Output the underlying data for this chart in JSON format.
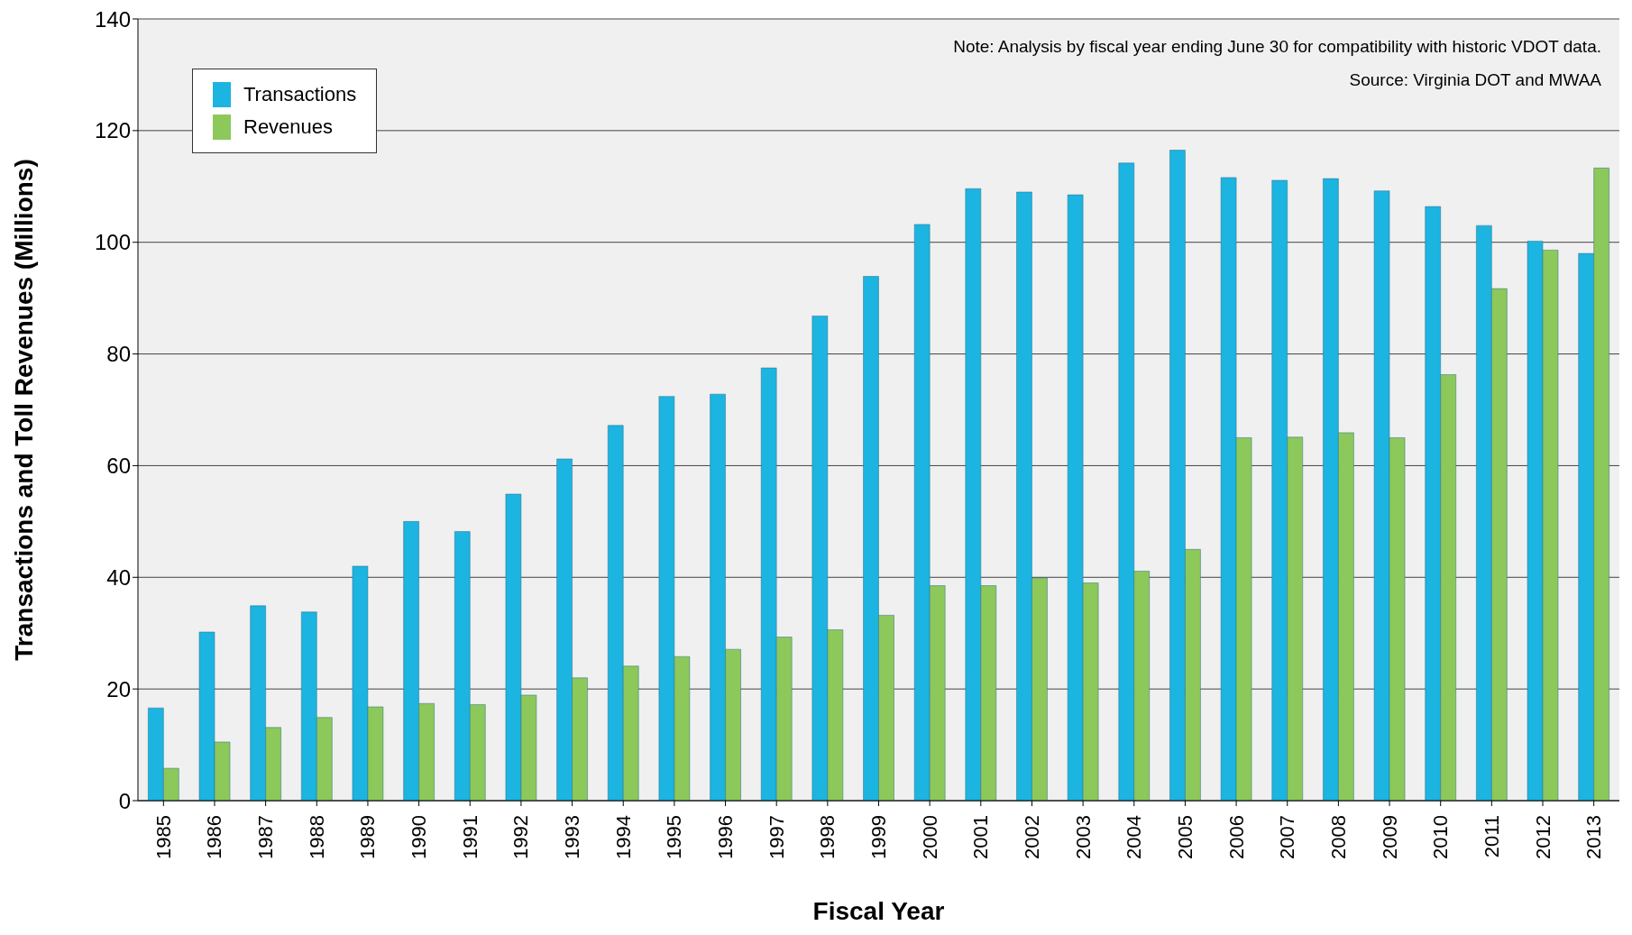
{
  "chart_data": {
    "type": "bar",
    "xlabel": "Fiscal Year",
    "ylabel": "Transactions and Toll Revenues (Millions)",
    "categories": [
      "1985",
      "1986",
      "1987",
      "1988",
      "1989",
      "1990",
      "1991",
      "1992",
      "1993",
      "1994",
      "1995",
      "1996",
      "1997",
      "1998",
      "1999",
      "2000",
      "2001",
      "2002",
      "2003",
      "2004",
      "2005",
      "2006",
      "2007",
      "2008",
      "2009",
      "2010",
      "2011",
      "2012",
      "2013"
    ],
    "series": [
      {
        "name": "Transactions",
        "color": "#1cb4e0",
        "values": [
          16.6,
          30.2,
          34.9,
          33.8,
          42.0,
          50.0,
          48.2,
          54.9,
          61.2,
          67.2,
          72.4,
          72.8,
          77.5,
          86.8,
          93.9,
          103.2,
          109.6,
          109.0,
          108.5,
          114.2,
          116.5,
          111.6,
          111.1,
          111.4,
          109.2,
          106.4,
          103.0,
          100.2,
          98.0
        ]
      },
      {
        "name": "Revenues",
        "color": "#8cc85a",
        "values": [
          5.8,
          10.5,
          13.1,
          14.9,
          16.8,
          17.4,
          17.2,
          18.9,
          22.0,
          24.1,
          25.8,
          27.1,
          29.3,
          30.6,
          33.2,
          38.5,
          38.5,
          39.9,
          39.0,
          41.1,
          45.0,
          65.0,
          65.1,
          65.9,
          65.0,
          76.3,
          91.7,
          98.6,
          113.3
        ]
      }
    ],
    "ylim": [
      0,
      140
    ],
    "yticks": [
      0,
      20,
      40,
      60,
      80,
      100,
      120,
      140
    ],
    "grid": "y",
    "legend": "top left",
    "annotations": [
      "Note: Analysis by fiscal year ending June 30 for compatibility with historic VDOT data.",
      "Source: Virginia DOT and MWAA"
    ]
  }
}
